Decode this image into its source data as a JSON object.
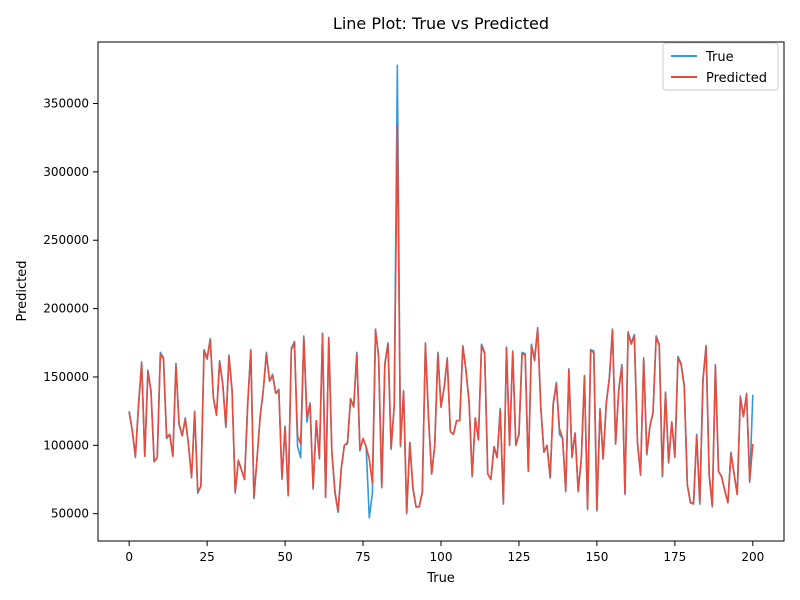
{
  "chart_data": {
    "type": "line",
    "title": "Line Plot: True vs Predicted",
    "xlabel": "True",
    "ylabel": "Predicted",
    "xlim": [
      -10,
      210
    ],
    "ylim": [
      30000,
      395000
    ],
    "xticks": [
      0,
      25,
      50,
      75,
      100,
      125,
      150,
      175,
      200
    ],
    "xtick_labels": [
      "0",
      "25",
      "50",
      "75",
      "100",
      "125",
      "150",
      "175",
      "200"
    ],
    "yticks": [
      50000,
      100000,
      150000,
      200000,
      250000,
      300000,
      350000
    ],
    "ytick_labels": [
      "50000",
      "100000",
      "150000",
      "200000",
      "250000",
      "300000",
      "350000"
    ],
    "grid": false,
    "legend_position": "top-right",
    "series": [
      {
        "name": "True",
        "color": "#3498db",
        "x": [
          0,
          1,
          2,
          3,
          4,
          5,
          6,
          7,
          8,
          9,
          10,
          11,
          12,
          13,
          14,
          15,
          16,
          17,
          18,
          19,
          20,
          21,
          22,
          23,
          24,
          25,
          26,
          27,
          28,
          29,
          30,
          31,
          32,
          33,
          34,
          35,
          36,
          37,
          38,
          39,
          40,
          41,
          42,
          43,
          44,
          45,
          46,
          47,
          48,
          49,
          50,
          51,
          52,
          53,
          54,
          55,
          56,
          57,
          58,
          59,
          60,
          61,
          62,
          63,
          64,
          65,
          66,
          67,
          68,
          69,
          70,
          71,
          72,
          73,
          74,
          75,
          76,
          77,
          78,
          79,
          80,
          81,
          82,
          83,
          84,
          85,
          86,
          87,
          88,
          89,
          90,
          91,
          92,
          93,
          94,
          95,
          96,
          97,
          98,
          99,
          100,
          101,
          102,
          103,
          104,
          105,
          106,
          107,
          108,
          109,
          110,
          111,
          112,
          113,
          114,
          115,
          116,
          117,
          118,
          119,
          120,
          121,
          122,
          123,
          124,
          125,
          126,
          127,
          128,
          129,
          130,
          131,
          132,
          133,
          134,
          135,
          136,
          137,
          138,
          139,
          140,
          141,
          142,
          143,
          144,
          145,
          146,
          147,
          148,
          149,
          150,
          151,
          152,
          153,
          154,
          155,
          156,
          157,
          158,
          159,
          160,
          161,
          162,
          163,
          164,
          165,
          166,
          167,
          168,
          169,
          170,
          171,
          172,
          173,
          174,
          175,
          176,
          177,
          178,
          179,
          180,
          181,
          182,
          183,
          184,
          185,
          186,
          187,
          188,
          189,
          190,
          191,
          192,
          193,
          194,
          195,
          196,
          197,
          198,
          199,
          200
        ],
        "values": [
          125000,
          110000,
          91000,
          130000,
          161000,
          92000,
          155000,
          140000,
          88000,
          91000,
          168000,
          164000,
          105000,
          108000,
          92000,
          160000,
          115000,
          107000,
          120000,
          101000,
          76000,
          125000,
          65000,
          70000,
          170000,
          164000,
          178000,
          135000,
          122000,
          162000,
          145000,
          113000,
          166000,
          140000,
          65000,
          89000,
          82000,
          75000,
          130000,
          170000,
          61000,
          90000,
          121000,
          140000,
          168000,
          147000,
          152000,
          138000,
          141000,
          75000,
          114000,
          63000,
          171000,
          176000,
          99000,
          91000,
          180000,
          117000,
          131000,
          68000,
          118000,
          90000,
          182000,
          62000,
          179000,
          95000,
          65000,
          51000,
          82000,
          100000,
          101000,
          134000,
          128000,
          168000,
          96000,
          105000,
          99000,
          47000,
          65000,
          185000,
          165000,
          69000,
          160000,
          175000,
          97000,
          129000,
          378000,
          99000,
          140000,
          50000,
          102000,
          68000,
          55000,
          55000,
          65000,
          175000,
          120000,
          79000,
          100000,
          168000,
          128000,
          142000,
          164000,
          110000,
          108000,
          118000,
          118000,
          173000,
          155000,
          132000,
          77000,
          120000,
          104000,
          174000,
          168000,
          79000,
          75000,
          99000,
          91000,
          127000,
          57000,
          172000,
          100000,
          169000,
          100000,
          108000,
          168000,
          167000,
          81000,
          174000,
          163000,
          186000,
          128000,
          95000,
          100000,
          76000,
          131000,
          146000,
          108000,
          105000,
          66000,
          156000,
          91000,
          109000,
          66000,
          90000,
          151000,
          53000,
          170000,
          169000,
          52000,
          127000,
          90000,
          131000,
          150000,
          185000,
          101000,
          141000,
          159000,
          64000,
          183000,
          175000,
          181000,
          102000,
          78000,
          164000,
          93000,
          114000,
          124000,
          180000,
          174000,
          77000,
          139000,
          87000,
          117000,
          91000,
          165000,
          160000,
          144000,
          71000,
          58000,
          57000,
          108000,
          57000,
          148000,
          173000,
          78000,
          55000,
          159000,
          81000,
          77000,
          67000,
          58000,
          95000,
          79000,
          64000,
          136000,
          121000,
          138000,
          73000,
          137000
        ]
      },
      {
        "name": "Predicted",
        "color": "#e74c3c",
        "x": [
          0,
          1,
          2,
          3,
          4,
          5,
          6,
          7,
          8,
          9,
          10,
          11,
          12,
          13,
          14,
          15,
          16,
          17,
          18,
          19,
          20,
          21,
          22,
          23,
          24,
          25,
          26,
          27,
          28,
          29,
          30,
          31,
          32,
          33,
          34,
          35,
          36,
          37,
          38,
          39,
          40,
          41,
          42,
          43,
          44,
          45,
          46,
          47,
          48,
          49,
          50,
          51,
          52,
          53,
          54,
          55,
          56,
          57,
          58,
          59,
          60,
          61,
          62,
          63,
          64,
          65,
          66,
          67,
          68,
          69,
          70,
          71,
          72,
          73,
          74,
          75,
          76,
          77,
          78,
          79,
          80,
          81,
          82,
          83,
          84,
          85,
          86,
          87,
          88,
          89,
          90,
          91,
          92,
          93,
          94,
          95,
          96,
          97,
          98,
          99,
          100,
          101,
          102,
          103,
          104,
          105,
          106,
          107,
          108,
          109,
          110,
          111,
          112,
          113,
          114,
          115,
          116,
          117,
          118,
          119,
          120,
          121,
          122,
          123,
          124,
          125,
          126,
          127,
          128,
          129,
          130,
          131,
          132,
          133,
          134,
          135,
          136,
          137,
          138,
          139,
          140,
          141,
          142,
          143,
          144,
          145,
          146,
          147,
          148,
          149,
          150,
          151,
          152,
          153,
          154,
          155,
          156,
          157,
          158,
          159,
          160,
          161,
          162,
          163,
          164,
          165,
          166,
          167,
          168,
          169,
          170,
          171,
          172,
          173,
          174,
          175,
          176,
          177,
          178,
          179,
          180,
          181,
          182,
          183,
          184,
          185,
          186,
          187,
          188,
          189,
          190,
          191,
          192,
          193,
          194,
          195,
          196,
          197,
          198,
          199,
          200
        ],
        "values": [
          124000,
          111000,
          92000,
          129000,
          160000,
          92000,
          154000,
          139000,
          88000,
          91000,
          167000,
          163000,
          106000,
          108000,
          92000,
          158000,
          116000,
          107000,
          119000,
          101000,
          77000,
          124000,
          66000,
          70000,
          169000,
          163000,
          177000,
          135000,
          122000,
          161000,
          145000,
          114000,
          165000,
          140000,
          66000,
          89000,
          82000,
          75000,
          129000,
          169000,
          62000,
          90000,
          121000,
          140000,
          167000,
          147000,
          151000,
          138000,
          140000,
          76000,
          113000,
          64000,
          170000,
          175000,
          107000,
          101000,
          179000,
          121000,
          130000,
          69000,
          118000,
          91000,
          181000,
          62000,
          178000,
          95000,
          66000,
          52000,
          83000,
          100000,
          102000,
          134000,
          128000,
          167000,
          97000,
          105000,
          99000,
          90000,
          72000,
          184000,
          164000,
          70000,
          159000,
          174000,
          98000,
          129000,
          334000,
          100000,
          139000,
          51000,
          102000,
          69000,
          55000,
          55000,
          66000,
          174000,
          120000,
          79000,
          100000,
          167000,
          128000,
          142000,
          163000,
          110000,
          108000,
          118000,
          118000,
          172000,
          155000,
          132000,
          78000,
          120000,
          104000,
          173000,
          167000,
          79000,
          75000,
          99000,
          91000,
          126000,
          58000,
          171000,
          100000,
          168000,
          100000,
          108000,
          167000,
          166000,
          81000,
          173000,
          162000,
          185000,
          128000,
          95000,
          100000,
          77000,
          130000,
          145000,
          112000,
          105000,
          67000,
          155000,
          92000,
          109000,
          67000,
          90000,
          150000,
          54000,
          169000,
          168000,
          53000,
          126000,
          90000,
          130000,
          149000,
          184000,
          101000,
          140000,
          158000,
          65000,
          182000,
          174000,
          180000,
          102000,
          79000,
          163000,
          94000,
          114000,
          124000,
          179000,
          173000,
          78000,
          138000,
          88000,
          117000,
          92000,
          164000,
          159000,
          143000,
          71000,
          58000,
          58000,
          107000,
          58000,
          147000,
          172000,
          79000,
          56000,
          158000,
          81000,
          77000,
          67000,
          58000,
          94000,
          79000,
          64000,
          135000,
          121000,
          137000,
          74000,
          101000
        ]
      }
    ]
  }
}
